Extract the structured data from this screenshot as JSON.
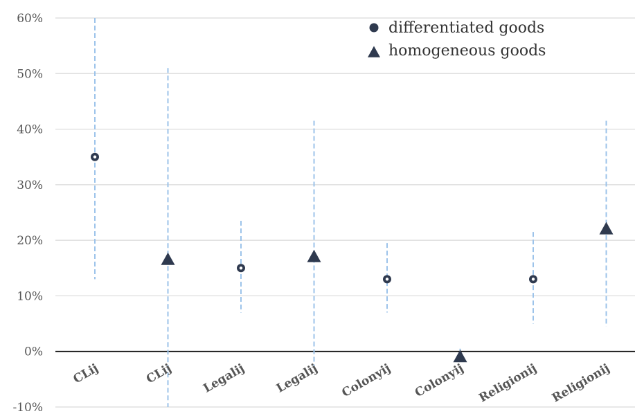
{
  "chart_data": {
    "type": "scatter",
    "title": "",
    "xlabel": "",
    "ylabel": "",
    "categories": [
      "CLij",
      "CLij",
      "Legalij",
      "Legalij",
      "Colonyij",
      "Colonyij",
      "Religionij",
      "Religionij"
    ],
    "y_ticks": [
      "60%",
      "50%",
      "40%",
      "30%",
      "20%",
      "10%",
      "0%",
      "-10%"
    ],
    "ylim": [
      -10,
      60
    ],
    "grid": true,
    "legend_position": "top-right",
    "series": [
      {
        "name": "differentiated goods",
        "marker": "circle",
        "positions": [
          0,
          2,
          4,
          6
        ],
        "values": [
          35,
          15,
          13,
          13
        ],
        "ci_low": [
          13,
          7,
          7,
          5
        ],
        "ci_high": [
          60,
          23.5,
          19.5,
          21.5
        ]
      },
      {
        "name": "homogeneous goods",
        "marker": "triangle",
        "positions": [
          1,
          3,
          5,
          7
        ],
        "values": [
          16.5,
          17,
          -1,
          22
        ],
        "ci_low": [
          -10,
          -3,
          -1,
          4.5
        ],
        "ci_high": [
          51,
          41.5,
          0.5,
          41.5
        ]
      }
    ],
    "colors": {
      "marker": "#2f3a4f",
      "interval": "#9cc3ea",
      "grid": "#d9d9d9",
      "zero_line": "#000000"
    }
  }
}
